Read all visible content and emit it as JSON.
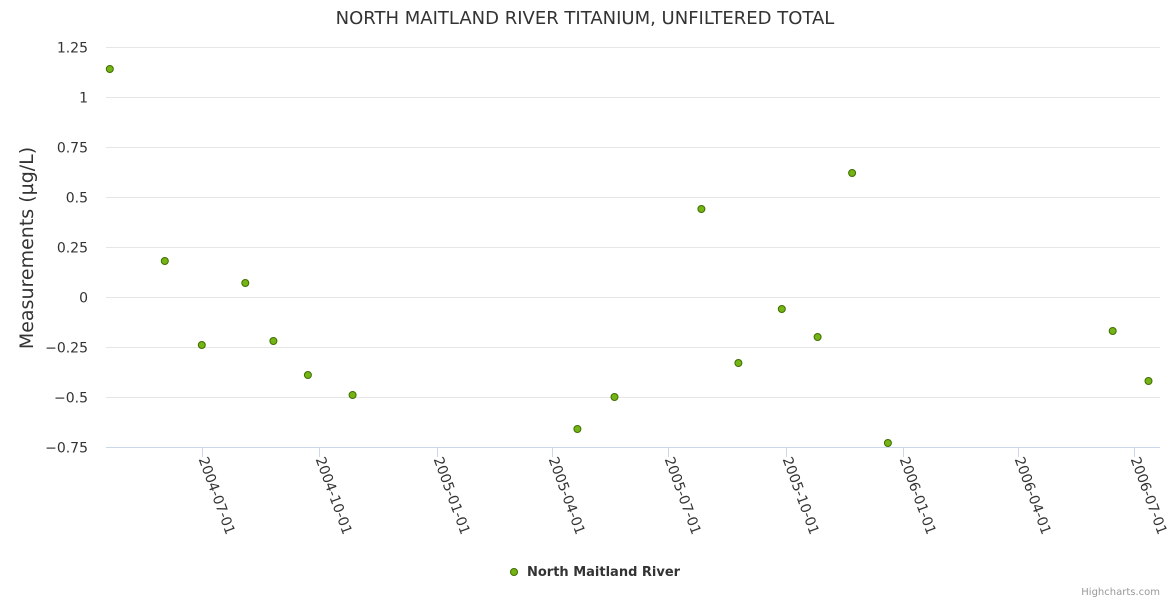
{
  "chart_data": {
    "type": "scatter",
    "title": "NORTH MAITLAND RIVER TITANIUM, UNFILTERED TOTAL",
    "xlabel": "",
    "ylabel": "Measurements (µg/L)",
    "ylim": [
      -0.75,
      1.25
    ],
    "yticks": [
      1.25,
      1,
      0.75,
      0.5,
      0.25,
      0,
      -0.25,
      -0.5,
      -0.75
    ],
    "ytick_labels": [
      "1.25",
      "1",
      "0.75",
      "0.5",
      "0.25",
      "0",
      "−0.25",
      "−0.5",
      "−0.75"
    ],
    "xlim": [
      "2004-04-17",
      "2006-07-21"
    ],
    "xticks": [
      "2004-07-01",
      "2004-10-01",
      "2005-01-01",
      "2005-04-01",
      "2005-07-01",
      "2005-10-01",
      "2006-01-01",
      "2006-04-01",
      "2006-07-01"
    ],
    "grid": true,
    "legend": "bottom-center",
    "series": [
      {
        "name": "North Maitland River",
        "color": "#7cb5ec",
        "marker_color": "#74b414",
        "marker_stroke": "#3f6e00",
        "points": [
          {
            "x": "2004-04-20",
            "y": 1.14
          },
          {
            "x": "2004-06-02",
            "y": 0.18
          },
          {
            "x": "2004-07-01",
            "y": -0.24
          },
          {
            "x": "2004-08-04",
            "y": 0.07
          },
          {
            "x": "2004-08-26",
            "y": -0.22
          },
          {
            "x": "2004-09-22",
            "y": -0.39
          },
          {
            "x": "2004-10-27",
            "y": -0.49
          },
          {
            "x": "2005-04-21",
            "y": -0.66
          },
          {
            "x": "2005-05-20",
            "y": -0.5
          },
          {
            "x": "2005-07-27",
            "y": 0.44
          },
          {
            "x": "2005-08-25",
            "y": -0.33
          },
          {
            "x": "2005-09-28",
            "y": -0.06
          },
          {
            "x": "2005-10-26",
            "y": -0.2
          },
          {
            "x": "2005-11-22",
            "y": 0.62
          },
          {
            "x": "2005-12-20",
            "y": -0.73
          },
          {
            "x": "2006-06-14",
            "y": -0.17
          },
          {
            "x": "2006-07-12",
            "y": -0.42
          }
        ]
      }
    ]
  },
  "credits": "Highcharts.com"
}
